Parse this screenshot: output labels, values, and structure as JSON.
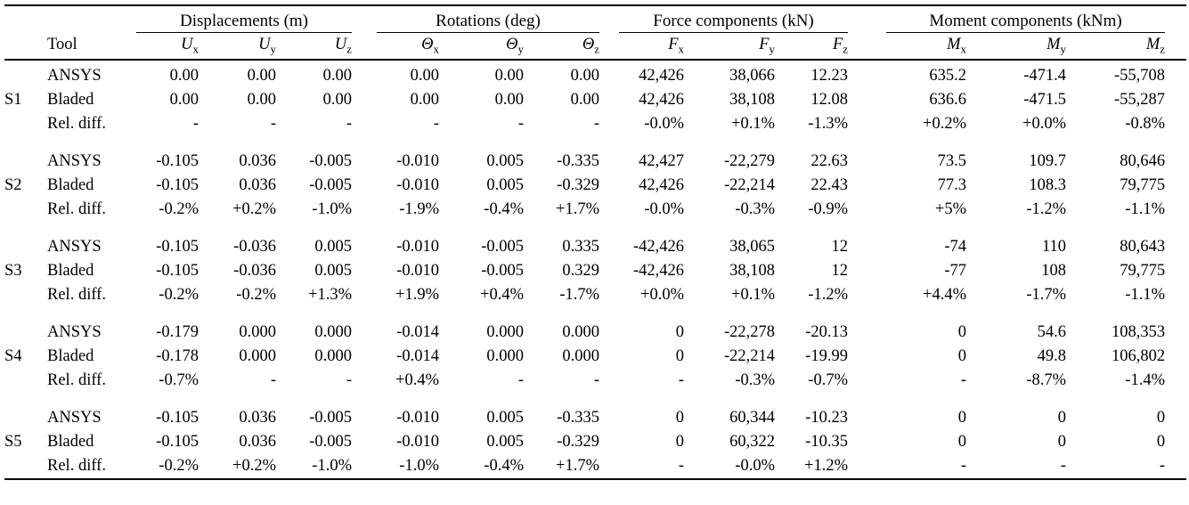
{
  "header": {
    "groups": [
      "Displacements (m)",
      "Rotations (deg)",
      "Force components (kN)",
      "Moment components (kNm)"
    ],
    "tool": "Tool",
    "columns": [
      {
        "base": "U",
        "sub": "x"
      },
      {
        "base": "U",
        "sub": "y"
      },
      {
        "base": "U",
        "sub": "z"
      },
      {
        "base": "Θ",
        "sub": "x"
      },
      {
        "base": "Θ",
        "sub": "y"
      },
      {
        "base": "Θ",
        "sub": "z"
      },
      {
        "base": "F",
        "sub": "x"
      },
      {
        "base": "F",
        "sub": "y"
      },
      {
        "base": "F",
        "sub": "z"
      },
      {
        "base": "M",
        "sub": "x"
      },
      {
        "base": "M",
        "sub": "y"
      },
      {
        "base": "M",
        "sub": "z"
      }
    ]
  },
  "groups": [
    {
      "label": "S1",
      "rows": [
        {
          "tool": "ANSYS",
          "values": [
            "0.00",
            "0.00",
            "0.00",
            "0.00",
            "0.00",
            "0.00",
            "42,426",
            "38,066",
            "12.23",
            "635.2",
            "-471.4",
            "-55,708"
          ]
        },
        {
          "tool": "Bladed",
          "values": [
            "0.00",
            "0.00",
            "0.00",
            "0.00",
            "0.00",
            "0.00",
            "42,426",
            "38,108",
            "12.08",
            "636.6",
            "-471.5",
            "-55,287"
          ]
        },
        {
          "tool": "Rel. diff.",
          "values": [
            "-",
            "-",
            "-",
            "-",
            "-",
            "-",
            "-0.0%",
            "+0.1%",
            "-1.3%",
            "+0.2%",
            "+0.0%",
            "-0.8%"
          ]
        }
      ]
    },
    {
      "label": "S2",
      "rows": [
        {
          "tool": "ANSYS",
          "values": [
            "-0.105",
            "0.036",
            "-0.005",
            "-0.010",
            "0.005",
            "-0.335",
            "42,427",
            "-22,279",
            "22.63",
            "73.5",
            "109.7",
            "80,646"
          ]
        },
        {
          "tool": "Bladed",
          "values": [
            "-0.105",
            "0.036",
            "-0.005",
            "-0.010",
            "0.005",
            "-0.329",
            "42,426",
            "-22,214",
            "22.43",
            "77.3",
            "108.3",
            "79,775"
          ]
        },
        {
          "tool": "Rel. diff.",
          "values": [
            "-0.2%",
            "+0.2%",
            "-1.0%",
            "-1.9%",
            "-0.4%",
            "+1.7%",
            "-0.0%",
            "-0.3%",
            "-0.9%",
            "+5%",
            "-1.2%",
            "-1.1%"
          ]
        }
      ]
    },
    {
      "label": "S3",
      "rows": [
        {
          "tool": "ANSYS",
          "values": [
            "-0.105",
            "-0.036",
            "0.005",
            "-0.010",
            "-0.005",
            "0.335",
            "-42,426",
            "38,065",
            "12",
            "-74",
            "110",
            "80,643"
          ]
        },
        {
          "tool": "Bladed",
          "values": [
            "-0.105",
            "-0.036",
            "0.005",
            "-0.010",
            "-0.005",
            "0.329",
            "-42,426",
            "38,108",
            "12",
            "-77",
            "108",
            "79,775"
          ]
        },
        {
          "tool": "Rel. diff.",
          "values": [
            "-0.2%",
            "-0.2%",
            "+1.3%",
            "+1.9%",
            "+0.4%",
            "-1.7%",
            "+0.0%",
            "+0.1%",
            "-1.2%",
            "+4.4%",
            "-1.7%",
            "-1.1%"
          ]
        }
      ]
    },
    {
      "label": "S4",
      "rows": [
        {
          "tool": "ANSYS",
          "values": [
            "-0.179",
            "0.000",
            "0.000",
            "-0.014",
            "0.000",
            "0.000",
            "0",
            "-22,278",
            "-20.13",
            "0",
            "54.6",
            "108,353"
          ]
        },
        {
          "tool": "Bladed",
          "values": [
            "-0.178",
            "0.000",
            "0.000",
            "-0.014",
            "0.000",
            "0.000",
            "0",
            "-22,214",
            "-19.99",
            "0",
            "49.8",
            "106,802"
          ]
        },
        {
          "tool": "Rel. diff.",
          "values": [
            "-0.7%",
            "-",
            "-",
            "+0.4%",
            "-",
            "-",
            "-",
            "-0.3%",
            "-0.7%",
            "-",
            "-8.7%",
            "-1.4%"
          ]
        }
      ]
    },
    {
      "label": "S5",
      "rows": [
        {
          "tool": "ANSYS",
          "values": [
            "-0.105",
            "0.036",
            "-0.005",
            "-0.010",
            "0.005",
            "-0.335",
            "0",
            "60,344",
            "-10.23",
            "0",
            "0",
            "0"
          ]
        },
        {
          "tool": "Bladed",
          "values": [
            "-0.105",
            "0.036",
            "-0.005",
            "-0.010",
            "0.005",
            "-0.329",
            "0",
            "60,322",
            "-10.35",
            "0",
            "0",
            "0"
          ]
        },
        {
          "tool": "Rel. diff.",
          "values": [
            "-0.2%",
            "+0.2%",
            "-1.0%",
            "-1.0%",
            "-0.4%",
            "+1.7%",
            "-",
            "-0.0%",
            "+1.2%",
            "-",
            "-",
            "-"
          ]
        }
      ]
    }
  ]
}
